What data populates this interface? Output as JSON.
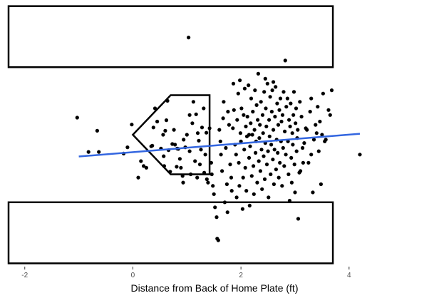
{
  "chart_data": {
    "type": "scatter",
    "title": "",
    "xlabel": "Distance from Back of Home Plate (ft)",
    "ylabel": "",
    "xlim": [
      -2.3,
      5.4
    ],
    "ylim": [
      -4.0,
      4.0
    ],
    "x_ticks": [
      -2,
      0,
      2,
      4
    ],
    "x_tick_labels": [
      "-2",
      "0",
      "2",
      "4"
    ],
    "grid": false,
    "point_color": "#000000",
    "trend_color": "#3366e0",
    "trend_line": {
      "x": [
        -1.0,
        4.2
      ],
      "y": [
        -0.66,
        0.03
      ]
    },
    "home_plate": {
      "x": [
        0.0,
        0.7,
        1.42,
        1.42,
        0.7,
        0.0
      ],
      "y": [
        0.0,
        1.2,
        1.2,
        -1.2,
        -1.2,
        0.0
      ]
    },
    "batter_boxes": [
      {
        "x": [
          -2.3,
          3.7,
          3.7,
          -2.3
        ],
        "y": [
          3.9,
          3.9,
          2.05,
          2.05
        ]
      },
      {
        "x": [
          -2.3,
          3.7,
          3.7,
          -2.3
        ],
        "y": [
          -2.05,
          -2.05,
          -3.9,
          -3.9
        ]
      }
    ],
    "points": [
      [
        1.03,
        2.95
      ],
      [
        2.82,
        2.25
      ],
      [
        -1.03,
        0.52
      ],
      [
        -0.66,
        0.12
      ],
      [
        -0.82,
        -0.52
      ],
      [
        -0.63,
        -0.52
      ],
      [
        -0.17,
        -0.57
      ],
      [
        -0.1,
        -0.38
      ],
      [
        -0.02,
        0.31
      ],
      [
        0.1,
        -1.3
      ],
      [
        0.15,
        -0.8
      ],
      [
        0.2,
        -0.95
      ],
      [
        0.25,
        -1.0
      ],
      [
        0.34,
        -0.35
      ],
      [
        0.36,
        -0.33
      ],
      [
        0.38,
        0.22
      ],
      [
        0.41,
        0.8
      ],
      [
        0.45,
        0.4
      ],
      [
        0.52,
        -0.42
      ],
      [
        0.56,
        0.0
      ],
      [
        0.57,
        -0.65
      ],
      [
        0.58,
        -0.95
      ],
      [
        0.6,
        0.12
      ],
      [
        0.62,
        0.44
      ],
      [
        0.64,
        1.03
      ],
      [
        0.66,
        -0.47
      ],
      [
        0.69,
        -1.12
      ],
      [
        0.73,
        -0.28
      ],
      [
        0.76,
        0.15
      ],
      [
        0.78,
        -0.3
      ],
      [
        0.81,
        -0.97
      ],
      [
        0.82,
        -0.42
      ],
      [
        0.84,
        -0.43
      ],
      [
        0.87,
        -0.73
      ],
      [
        0.89,
        -1.0
      ],
      [
        0.92,
        -1.25
      ],
      [
        0.93,
        -1.45
      ],
      [
        0.94,
        -0.15
      ],
      [
        0.97,
        -0.38
      ],
      [
        1.0,
        0.0
      ],
      [
        1.05,
        -0.5
      ],
      [
        1.07,
        -1.2
      ],
      [
        1.1,
        0.35
      ],
      [
        1.12,
        1.0
      ],
      [
        1.15,
        -0.8
      ],
      [
        1.17,
        0.62
      ],
      [
        1.19,
        -1.3
      ],
      [
        1.22,
        -0.18
      ],
      [
        1.24,
        -0.9
      ],
      [
        1.26,
        -0.45
      ],
      [
        1.28,
        0.22
      ],
      [
        1.31,
        0.8
      ],
      [
        1.32,
        -1.15
      ],
      [
        1.34,
        -0.6
      ],
      [
        1.36,
        0.06
      ],
      [
        1.37,
        -1.35
      ],
      [
        1.39,
        -1.45
      ],
      [
        1.42,
        0.2
      ],
      [
        1.45,
        -0.85
      ],
      [
        1.46,
        -1.2
      ],
      [
        1.48,
        -1.55
      ],
      [
        1.5,
        -1.8
      ],
      [
        1.52,
        -2.2
      ],
      [
        1.55,
        -2.5
      ],
      [
        1.56,
        -3.15
      ],
      [
        1.58,
        -3.2
      ],
      [
        1.6,
        0.15
      ],
      [
        1.62,
        -0.2
      ],
      [
        1.63,
        -0.6
      ],
      [
        1.65,
        -1.1
      ],
      [
        1.67,
        0.5
      ],
      [
        1.68,
        1.0
      ],
      [
        1.7,
        -2.05
      ],
      [
        1.72,
        -0.4
      ],
      [
        1.74,
        -1.5
      ],
      [
        1.75,
        -2.35
      ],
      [
        1.76,
        0.7
      ],
      [
        1.78,
        0.3
      ],
      [
        1.8,
        -0.9
      ],
      [
        1.82,
        -1.3
      ],
      [
        1.83,
        -1.7
      ],
      [
        1.85,
        0.2
      ],
      [
        1.86,
        1.55
      ],
      [
        1.87,
        0.75
      ],
      [
        1.89,
        -0.3
      ],
      [
        1.91,
        -0.6
      ],
      [
        1.92,
        -1.9
      ],
      [
        1.93,
        0.45
      ],
      [
        1.95,
        1.25
      ],
      [
        1.96,
        -0.85
      ],
      [
        1.97,
        -1.55
      ],
      [
        1.99,
        0.05
      ],
      [
        2.0,
        -0.2
      ],
      [
        2.01,
        0.8
      ],
      [
        2.03,
        -2.25
      ],
      [
        2.04,
        -1.3
      ],
      [
        2.05,
        0.6
      ],
      [
        2.06,
        -0.45
      ],
      [
        2.07,
        1.4
      ],
      [
        2.08,
        -1.0
      ],
      [
        2.09,
        0.25
      ],
      [
        2.1,
        -1.7
      ],
      [
        2.11,
        -0.05
      ],
      [
        2.12,
        0.55
      ],
      [
        2.14,
        1.5
      ],
      [
        2.15,
        -0.7
      ],
      [
        2.16,
        -2.15
      ],
      [
        2.17,
        -0.35
      ],
      [
        2.18,
        0.35
      ],
      [
        2.19,
        1.1
      ],
      [
        2.2,
        -1.25
      ],
      [
        2.21,
        0.0
      ],
      [
        2.22,
        0.7
      ],
      [
        2.23,
        -0.95
      ],
      [
        2.24,
        -1.8
      ],
      [
        2.25,
        0.15
      ],
      [
        2.26,
        1.35
      ],
      [
        2.27,
        -0.55
      ],
      [
        2.28,
        -0.2
      ],
      [
        2.29,
        0.9
      ],
      [
        2.3,
        -1.45
      ],
      [
        2.31,
        0.45
      ],
      [
        2.32,
        1.85
      ],
      [
        2.33,
        -0.8
      ],
      [
        2.34,
        -0.1
      ],
      [
        2.35,
        0.3
      ],
      [
        2.36,
        -1.1
      ],
      [
        2.37,
        1.0
      ],
      [
        2.38,
        -0.45
      ],
      [
        2.39,
        -1.65
      ],
      [
        2.4,
        0.6
      ],
      [
        2.41,
        0.05
      ],
      [
        2.42,
        -0.65
      ],
      [
        2.43,
        1.3
      ],
      [
        2.44,
        -1.35
      ],
      [
        2.45,
        -0.25
      ],
      [
        2.46,
        0.8
      ],
      [
        2.47,
        0.25
      ],
      [
        2.48,
        -0.9
      ],
      [
        2.49,
        1.55
      ],
      [
        2.5,
        -0.5
      ],
      [
        2.51,
        -1.9
      ],
      [
        2.52,
        0.45
      ],
      [
        2.53,
        -0.05
      ],
      [
        2.54,
        1.15
      ],
      [
        2.55,
        -1.2
      ],
      [
        2.56,
        -0.3
      ],
      [
        2.57,
        0.7
      ],
      [
        2.58,
        1.35
      ],
      [
        2.59,
        -0.75
      ],
      [
        2.6,
        0.15
      ],
      [
        2.61,
        -1.5
      ],
      [
        2.62,
        -0.45
      ],
      [
        2.63,
        0.55
      ],
      [
        2.64,
        1.45
      ],
      [
        2.65,
        -1.05
      ],
      [
        2.66,
        -0.15
      ],
      [
        2.67,
        0.95
      ],
      [
        2.68,
        -0.55
      ],
      [
        2.69,
        0.3
      ],
      [
        2.7,
        -1.3
      ],
      [
        2.71,
        0.75
      ],
      [
        2.72,
        -0.85
      ],
      [
        2.73,
        1.1
      ],
      [
        2.74,
        -0.2
      ],
      [
        2.75,
        0.4
      ],
      [
        2.76,
        -1.55
      ],
      [
        2.77,
        0.6
      ],
      [
        2.78,
        -0.4
      ],
      [
        2.79,
        1.3
      ],
      [
        2.8,
        -0.95
      ],
      [
        2.81,
        0.1
      ],
      [
        2.83,
        -0.6
      ],
      [
        2.84,
        0.85
      ],
      [
        2.86,
        1.1
      ],
      [
        2.87,
        -0.2
      ],
      [
        2.88,
        -1.2
      ],
      [
        2.89,
        0.45
      ],
      [
        2.9,
        -2.0
      ],
      [
        2.91,
        0.25
      ],
      [
        2.92,
        0.95
      ],
      [
        2.93,
        -0.7
      ],
      [
        2.94,
        -1.45
      ],
      [
        2.95,
        0.05
      ],
      [
        2.96,
        -0.3
      ],
      [
        2.97,
        0.6
      ],
      [
        2.98,
        1.3
      ],
      [
        2.99,
        -0.9
      ],
      [
        3.0,
        -1.75
      ],
      [
        3.01,
        0.35
      ],
      [
        3.02,
        0.8
      ],
      [
        3.03,
        -0.5
      ],
      [
        3.04,
        -0.1
      ],
      [
        3.05,
        0.15
      ],
      [
        3.06,
        -2.55
      ],
      [
        3.08,
        -1.15
      ],
      [
        3.09,
        1.0
      ],
      [
        3.1,
        -1.1
      ],
      [
        3.12,
        0.55
      ],
      [
        3.14,
        -0.4
      ],
      [
        3.15,
        -0.85
      ],
      [
        3.17,
        -0.25
      ],
      [
        3.2,
        0.2
      ],
      [
        3.22,
        0.15
      ],
      [
        3.25,
        -0.85
      ],
      [
        3.28,
        0.7
      ],
      [
        3.3,
        -0.6
      ],
      [
        3.33,
        -1.75
      ],
      [
        3.35,
        -0.15
      ],
      [
        3.38,
        0.3
      ],
      [
        3.4,
        0.05
      ],
      [
        3.42,
        0.85
      ],
      [
        3.44,
        -0.5
      ],
      [
        3.46,
        0.4
      ],
      [
        3.48,
        -1.5
      ],
      [
        3.5,
        0.0
      ],
      [
        3.52,
        1.25
      ],
      [
        3.55,
        -0.2
      ],
      [
        3.57,
        -0.15
      ],
      [
        3.62,
        0.75
      ],
      [
        3.65,
        0.6
      ],
      [
        3.68,
        1.35
      ],
      [
        4.2,
        -0.6
      ],
      [
        1.05,
        0.6
      ],
      [
        1.2,
        0.05
      ],
      [
        2.15,
        0.0
      ],
      [
        2.45,
        1.7
      ],
      [
        1.98,
        1.65
      ],
      [
        2.6,
        1.6
      ],
      [
        3.3,
        1.1
      ]
    ]
  }
}
